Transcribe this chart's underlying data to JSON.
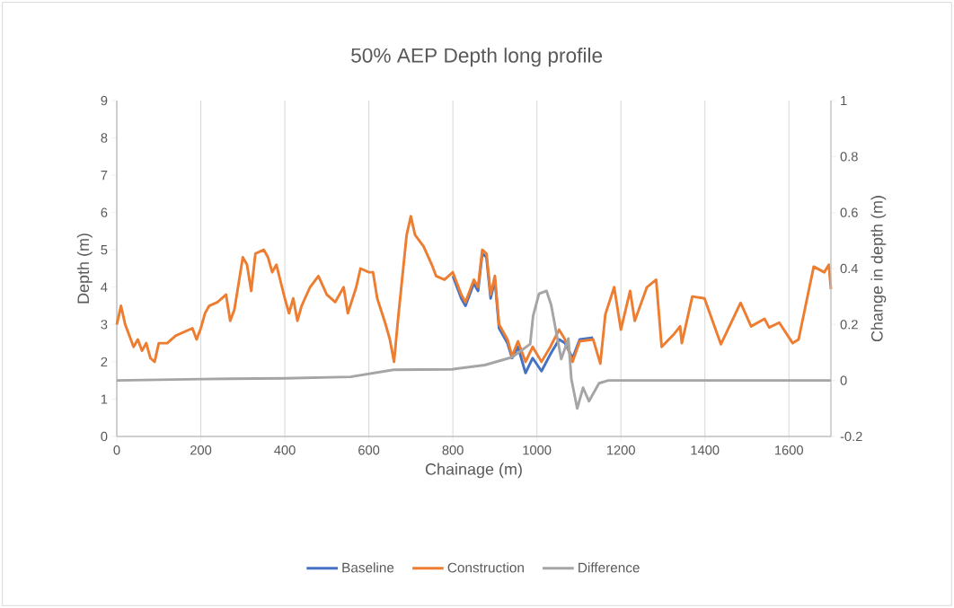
{
  "chart_data": {
    "type": "line",
    "title": "50% AEP Depth long profile",
    "xlabel": "Chainage (m)",
    "ylabel": "Depth (m)",
    "y2label": "Change in depth (m)",
    "x": [
      0,
      10,
      20,
      30,
      40,
      50,
      60,
      70,
      80,
      90,
      100,
      120,
      140,
      160,
      180,
      190,
      200,
      210,
      220,
      240,
      260,
      270,
      280,
      300,
      310,
      320,
      330,
      350,
      360,
      370,
      380,
      400,
      410,
      420,
      430,
      440,
      460,
      480,
      500,
      520,
      540,
      550,
      570,
      580,
      600,
      610,
      620,
      640,
      650,
      660,
      670,
      690,
      700,
      710,
      730,
      750,
      760,
      780,
      800,
      820,
      830,
      850,
      860,
      870,
      880,
      890,
      900,
      910,
      930,
      941,
      955,
      973,
      990,
      1011,
      1032,
      1053,
      1067,
      1085,
      1102,
      1134,
      1151,
      1163,
      1184,
      1200,
      1222,
      1233,
      1262,
      1284,
      1297,
      1327,
      1341,
      1345,
      1370,
      1399,
      1438,
      1485,
      1510,
      1542,
      1553,
      1577,
      1609,
      1623,
      1659,
      1684,
      1695,
      1700
    ],
    "series": [
      {
        "name": "Baseline",
        "color": "#4472c4",
        "values": [
          null,
          null,
          null,
          null,
          null,
          null,
          null,
          null,
          null,
          null,
          null,
          null,
          null,
          null,
          null,
          null,
          null,
          null,
          null,
          null,
          null,
          null,
          null,
          null,
          null,
          null,
          null,
          null,
          null,
          null,
          null,
          null,
          null,
          null,
          null,
          null,
          null,
          null,
          null,
          null,
          null,
          null,
          null,
          null,
          null,
          null,
          null,
          null,
          null,
          null,
          null,
          null,
          null,
          null,
          null,
          null,
          null,
          null,
          4.3,
          3.7,
          3.5,
          4.1,
          3.9,
          4.9,
          4.8,
          3.7,
          4.2,
          2.9,
          2.5,
          2.1,
          2.4,
          1.7,
          2.1,
          1.75,
          2.2,
          2.6,
          2.5,
          2.1,
          2.6,
          2.65,
          null,
          null,
          null,
          null,
          null,
          null,
          null,
          null,
          null,
          null,
          null,
          null,
          null,
          null,
          null,
          null,
          null,
          null,
          null,
          null,
          null,
          null,
          null,
          null,
          null,
          null
        ]
      },
      {
        "name": "Construction",
        "color": "#ed7d31",
        "values": [
          3.0,
          3.5,
          3.0,
          2.7,
          2.4,
          2.6,
          2.3,
          2.5,
          2.1,
          2.0,
          2.5,
          2.5,
          2.7,
          2.8,
          2.9,
          2.6,
          2.9,
          3.3,
          3.5,
          3.6,
          3.8,
          3.1,
          3.4,
          4.8,
          4.6,
          3.9,
          4.9,
          5.0,
          4.8,
          4.4,
          4.6,
          3.7,
          3.3,
          3.7,
          3.1,
          3.5,
          4.0,
          4.3,
          3.8,
          3.6,
          4.0,
          3.3,
          4.0,
          4.5,
          4.4,
          4.4,
          3.7,
          3.0,
          2.6,
          2.0,
          3.2,
          5.4,
          5.9,
          5.4,
          5.1,
          4.6,
          4.3,
          4.2,
          4.4,
          3.8,
          3.6,
          4.2,
          4.0,
          5.0,
          4.9,
          3.8,
          4.3,
          3.0,
          2.6,
          2.15,
          2.55,
          2.0,
          2.4,
          2.0,
          2.4,
          2.86,
          2.6,
          2.0,
          2.55,
          2.6,
          1.95,
          3.27,
          4.0,
          2.86,
          3.9,
          3.1,
          4.0,
          4.2,
          2.4,
          2.75,
          2.95,
          2.5,
          3.75,
          3.7,
          2.47,
          3.58,
          2.95,
          3.15,
          2.92,
          3.05,
          2.5,
          2.6,
          4.55,
          4.4,
          4.6,
          3.95
        ]
      },
      {
        "name": "Difference",
        "color": "#a5a5a5",
        "axis": "y2",
        "x": [
          0,
          200,
          400,
          556,
          659,
          798,
          876,
          941,
          984,
          991,
          1005,
          1023,
          1034,
          1058,
          1075,
          1082,
          1096,
          1110,
          1124,
          1148,
          1170,
          1400,
          1700
        ],
        "values": [
          0,
          0.005,
          0.008,
          0.013,
          0.038,
          0.04,
          0.055,
          0.083,
          0.13,
          0.23,
          0.31,
          0.32,
          0.27,
          0.077,
          0.15,
          0.006,
          -0.1,
          -0.026,
          -0.074,
          -0.01,
          0,
          0,
          0
        ]
      }
    ],
    "xlim": [
      0,
      1700
    ],
    "xticks": [
      0,
      200,
      400,
      600,
      800,
      1000,
      1200,
      1400,
      1600
    ],
    "ylim": [
      0,
      9
    ],
    "yticks": [
      0,
      1,
      2,
      3,
      4,
      5,
      6,
      7,
      8,
      9
    ],
    "y2lim": [
      -0.2,
      1
    ],
    "y2ticks": [
      -0.2,
      0,
      0.2,
      0.4,
      0.6,
      0.8,
      1
    ],
    "grid": "x",
    "legend": "bottom"
  }
}
